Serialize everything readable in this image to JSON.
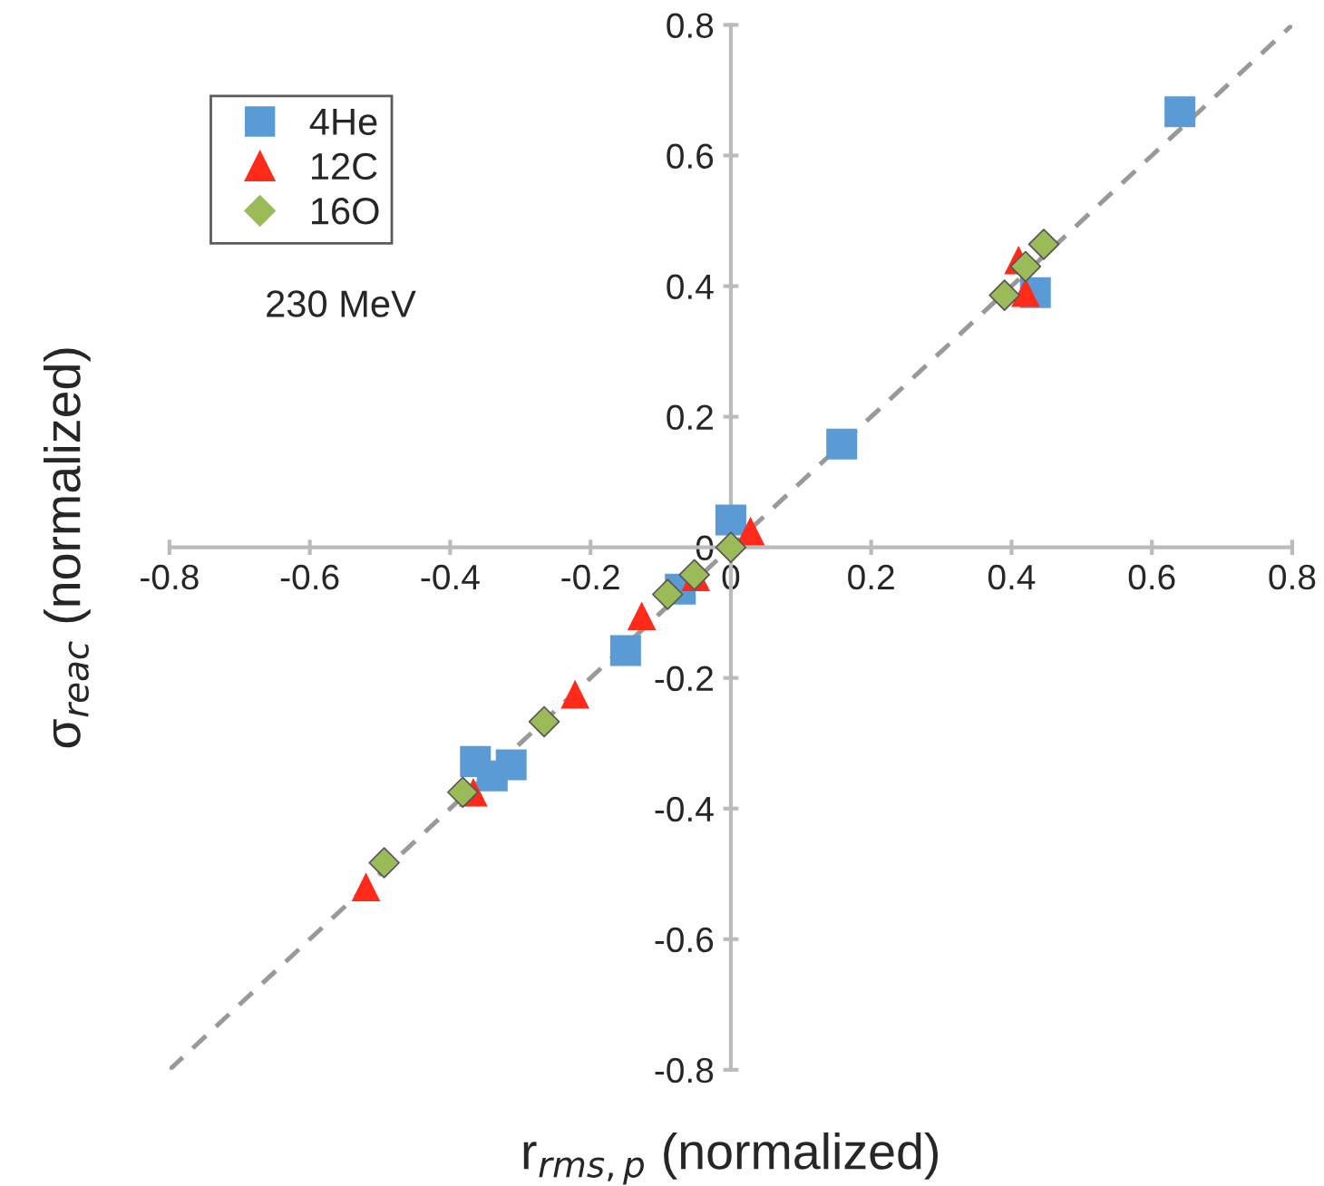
{
  "chart_data": {
    "type": "scatter",
    "xlabel": "r$_{rms,p}$ (normalized)",
    "ylabel": "σ$_{reac}$ (normalized)",
    "annotations": [
      "230 MeV"
    ],
    "series": [
      {
        "name": "4He",
        "color": "#5b9bd5",
        "marker": "square",
        "x": [
          0.64,
          0.434,
          0.158,
          0.0,
          -0.072,
          -0.15,
          -0.364,
          -0.34,
          -0.313
        ],
        "values": [
          0.667,
          0.39,
          0.158,
          0.042,
          -0.064,
          -0.158,
          -0.328,
          -0.35,
          -0.333
        ]
      },
      {
        "name": "12C",
        "color": "#ff2a1a",
        "marker": "triangle",
        "x": [
          0.028,
          0.42,
          0.41,
          -0.05,
          -0.127,
          -0.222,
          -0.367,
          -0.52
        ],
        "values": [
          0.025,
          0.39,
          0.44,
          -0.045,
          -0.105,
          -0.225,
          -0.375,
          -0.52
        ]
      },
      {
        "name": "16O",
        "color": "#9bbb59",
        "marker": "diamond",
        "x": [
          0.0,
          -0.052,
          -0.09,
          -0.266,
          -0.382,
          -0.494,
          0.39,
          0.42,
          0.446
        ],
        "values": [
          0.0,
          -0.042,
          -0.072,
          -0.267,
          -0.375,
          -0.483,
          0.386,
          0.43,
          0.464
        ]
      },
      {
        "type": "line",
        "color": "#999999",
        "line_style": "dashed",
        "marker": "none",
        "x": [
          -0.8,
          0.8
        ],
        "values": [
          -0.8,
          0.8
        ]
      }
    ],
    "xlim": [
      -0.8,
      0.8
    ],
    "ylim": [
      -0.8,
      0.8
    ],
    "xticks": [
      -0.8,
      -0.6,
      -0.4,
      -0.2,
      0,
      0.2,
      0.4,
      0.6,
      0.8
    ],
    "yticks": [
      -0.8,
      -0.6,
      -0.4,
      -0.2,
      0,
      0.2,
      0.4,
      0.6,
      0.8
    ],
    "grid": false,
    "legend": "top left"
  }
}
